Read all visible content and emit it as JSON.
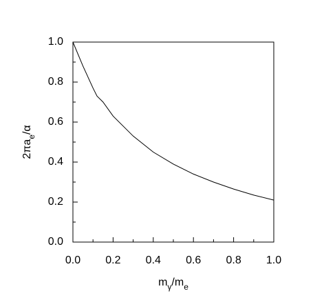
{
  "chart_data": {
    "type": "line",
    "x_label": [
      "m",
      "γ",
      "/m",
      "e"
    ],
    "y_label": [
      "2πa",
      "e",
      "/α"
    ],
    "x": [
      0,
      0.05,
      0.1,
      0.12,
      0.15,
      0.2,
      0.3,
      0.4,
      0.5,
      0.6,
      0.7,
      0.8,
      0.9,
      1.0
    ],
    "series": [
      {
        "color": "#000000",
        "values": [
          1.0,
          0.88,
          0.77,
          0.73,
          0.7,
          0.63,
          0.53,
          0.45,
          0.39,
          0.34,
          0.3,
          0.265,
          0.235,
          0.21
        ]
      }
    ],
    "xlim": [
      0,
      1
    ],
    "ylim": [
      0,
      1
    ],
    "xticks": [
      {
        "value": 0,
        "label": "0.0"
      },
      {
        "value": 0.2,
        "label": "0.2"
      },
      {
        "value": 0.4,
        "label": "0.4"
      },
      {
        "value": 0.6,
        "label": "0.6"
      },
      {
        "value": 0.8,
        "label": "0.8"
      },
      {
        "value": 1,
        "label": "1.0"
      }
    ],
    "yticks": [
      {
        "value": 0,
        "label": "0.0"
      },
      {
        "value": 0.2,
        "label": "0.2"
      },
      {
        "value": 0.4,
        "label": "0.4"
      },
      {
        "value": 0.6,
        "label": "0.6"
      },
      {
        "value": 0.8,
        "label": "0.8"
      },
      {
        "value": 1,
        "label": "1.0"
      }
    ],
    "xminorticks": [
      0.1,
      0.3,
      0.5,
      0.7,
      0.9
    ],
    "yminorticks": [
      0.1,
      0.3,
      0.5,
      0.7,
      0.9
    ],
    "grid": false
  }
}
